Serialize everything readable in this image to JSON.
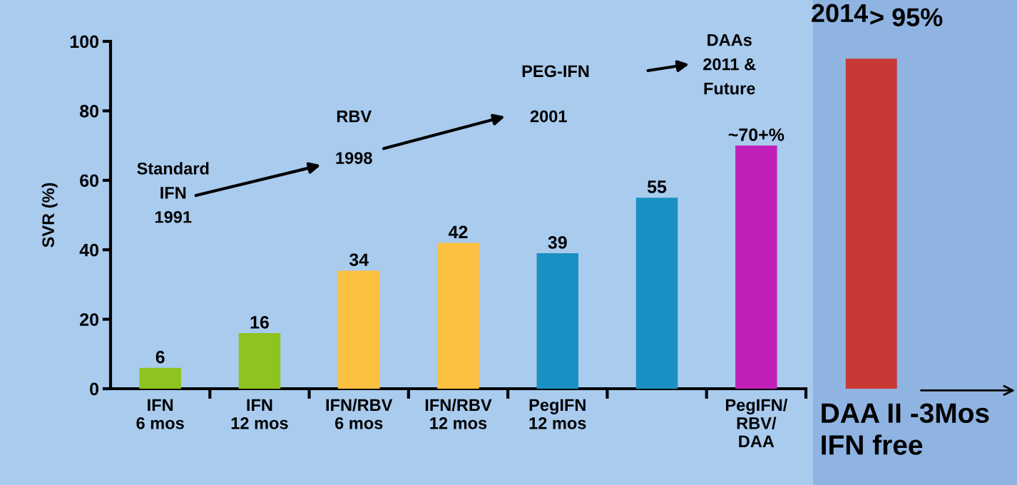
{
  "chart_data": [
    {
      "type": "bar",
      "ylabel": "SVR (%)",
      "categories": [
        "IFN\n6 mos",
        "IFN\n12 mos",
        "IFN/RBV\n6 mos",
        "IFN/RBV\n12 mos",
        "PegIFN\n12 mos",
        null,
        "PegIFN/\nRBV/\nDAA"
      ],
      "values": [
        6,
        16,
        34,
        42,
        39,
        55,
        70
      ],
      "colors": [
        "#8fc31f",
        "#8fc31f",
        "#fcc040",
        "#fcc040",
        "#1a90c4",
        "#1a90c4",
        "#c020b8"
      ],
      "value_labels": [
        "6",
        "16",
        "34",
        "42",
        "39",
        "55",
        "~70+%"
      ],
      "ylim": [
        0,
        100
      ],
      "yticks": [
        0,
        20,
        40,
        60,
        80,
        100
      ],
      "grid": false,
      "legend": false,
      "annotations": [
        "Standard\nIFN\n1991",
        "RBV",
        "1998",
        "PEG-IFN",
        "2001",
        "DAAs\n2011 &\nFuture"
      ]
    },
    {
      "type": "bar",
      "ylim": [
        0,
        100
      ],
      "tick_labels": "x",
      "categories": [
        "DAA II -3Mos\nIFN free"
      ],
      "values": [
        95
      ],
      "colors": [
        "#c83835"
      ],
      "value_labels": [
        "> 95%"
      ],
      "annotations": [
        "2014"
      ]
    }
  ]
}
